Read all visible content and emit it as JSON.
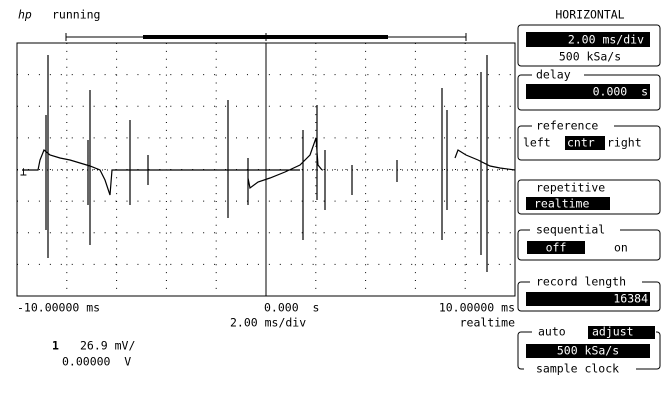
{
  "header": {
    "logo": "hp",
    "status": "running"
  },
  "screen": {
    "left_time": "-10.00000 ms",
    "center_time": "0.000  s",
    "right_time": "10.00000 ms",
    "timebase": "2.00 ms/div",
    "mode": "realtime"
  },
  "channel": {
    "number": "1",
    "scale": "26.9 mV/",
    "offset": "0.00000  V"
  },
  "panel": {
    "title": "HORIZONTAL",
    "timebase": {
      "value": "2.00 ms/div",
      "rate": "500 kSa/s"
    },
    "delay": {
      "label": "delay",
      "value": "0.000  s"
    },
    "reference": {
      "label": "reference",
      "options": [
        "left",
        "cntr",
        "right"
      ]
    },
    "repetitive": {
      "label": "repetitive",
      "value": "realtime"
    },
    "sequential": {
      "label": "sequential",
      "options": [
        "off",
        "on"
      ]
    },
    "record_length": {
      "label": "record length",
      "value": "16384"
    },
    "sample_clock": {
      "options": [
        "auto",
        "adjust"
      ],
      "value": "500 kSa/s",
      "label": "sample clock"
    }
  }
}
